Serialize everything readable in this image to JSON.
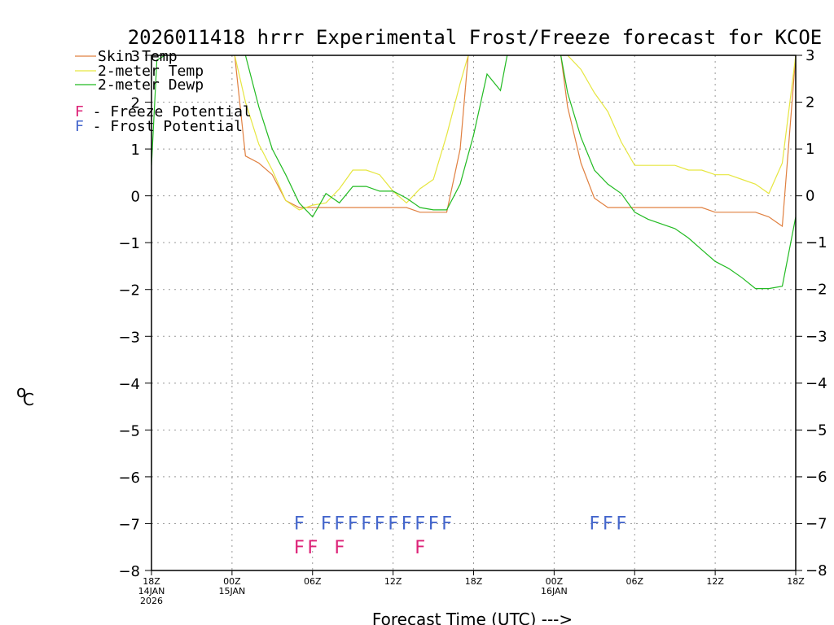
{
  "chart_data": {
    "type": "line",
    "title": "2026011418 hrrr Experimental Frost/Freeze forecast for KCOE",
    "xlabel": "Forecast Time (UTC) --->",
    "ylabel_sup": "o",
    "ylabel": "C",
    "ylim": [
      -8,
      3
    ],
    "xlim": [
      0,
      48
    ],
    "y_ticks": [
      "3",
      "2",
      "1",
      "0",
      "−1",
      "−2",
      "−3",
      "−4",
      "−5",
      "−6",
      "−7",
      "−8"
    ],
    "y_tick_values": [
      3,
      2,
      1,
      0,
      -1,
      -2,
      -3,
      -4,
      -5,
      -6,
      -7,
      -8
    ],
    "x_ticks": [
      {
        "hour": 0,
        "label": "18Z",
        "sub1": "14JAN",
        "sub2": "2026"
      },
      {
        "hour": 6,
        "label": "00Z",
        "sub1": "15JAN",
        "sub2": ""
      },
      {
        "hour": 12,
        "label": "06Z",
        "sub1": "",
        "sub2": ""
      },
      {
        "hour": 18,
        "label": "12Z",
        "sub1": "",
        "sub2": ""
      },
      {
        "hour": 24,
        "label": "18Z",
        "sub1": "",
        "sub2": ""
      },
      {
        "hour": 30,
        "label": "00Z",
        "sub1": "16JAN",
        "sub2": ""
      },
      {
        "hour": 36,
        "label": "06Z",
        "sub1": "",
        "sub2": ""
      },
      {
        "hour": 42,
        "label": "12Z",
        "sub1": "",
        "sub2": ""
      },
      {
        "hour": 48,
        "label": "18Z",
        "sub1": "",
        "sub2": ""
      }
    ],
    "series": [
      {
        "name": "Skin Temp",
        "color": "#e08040",
        "x": [
          6.2,
          7,
          8,
          9,
          10,
          11,
          12,
          13,
          14,
          15,
          16,
          17,
          18,
          19,
          20,
          21,
          22,
          23,
          23.6,
          30.5,
          31,
          32,
          33,
          34,
          35,
          36,
          37,
          38,
          39,
          40,
          41,
          42,
          43,
          44,
          45,
          46,
          47,
          48
        ],
        "values": [
          3,
          0.85,
          0.7,
          0.45,
          -0.1,
          -0.25,
          -0.25,
          -0.25,
          -0.25,
          -0.25,
          -0.25,
          -0.25,
          -0.25,
          -0.25,
          -0.35,
          -0.35,
          -0.35,
          1.0,
          3,
          3,
          1.9,
          0.7,
          -0.05,
          -0.25,
          -0.25,
          -0.25,
          -0.25,
          -0.25,
          -0.25,
          -0.25,
          -0.25,
          -0.35,
          -0.35,
          -0.35,
          -0.35,
          -0.45,
          -0.65,
          3
        ]
      },
      {
        "name": "2-meter Temp",
        "color": "#e6e640",
        "x": [
          6.2,
          7,
          8,
          9,
          10,
          11,
          12,
          13,
          14,
          15,
          16,
          17,
          18,
          19,
          20,
          21,
          22,
          23,
          23.6,
          30.5,
          31,
          32,
          33,
          34,
          35,
          36,
          37,
          38,
          39,
          40,
          41,
          42,
          43,
          44,
          45,
          46,
          47,
          48
        ],
        "values": [
          3,
          2.0,
          1.1,
          0.55,
          -0.1,
          -0.3,
          -0.2,
          -0.15,
          0.15,
          0.55,
          0.55,
          0.45,
          0.1,
          -0.15,
          0.15,
          0.35,
          1.3,
          2.4,
          3,
          3,
          3,
          2.7,
          2.2,
          1.8,
          1.15,
          0.65,
          0.65,
          0.65,
          0.65,
          0.55,
          0.55,
          0.45,
          0.45,
          0.35,
          0.25,
          0.05,
          0.7,
          3
        ]
      },
      {
        "name": "2-meter Dewp",
        "color": "#22bb22",
        "x": [
          0,
          0.4,
          1,
          7,
          8,
          9,
          10,
          11,
          12,
          13,
          14,
          15,
          16,
          17,
          18,
          19,
          20,
          21,
          22,
          23,
          24,
          25,
          26,
          26.5,
          30.5,
          31,
          32,
          33,
          34,
          35,
          36,
          37,
          38,
          39,
          40,
          41,
          42,
          43,
          44,
          45,
          46,
          47,
          48
        ],
        "values": [
          0.65,
          2.9,
          3,
          3,
          1.9,
          1.0,
          0.45,
          -0.15,
          -0.45,
          0.05,
          -0.15,
          0.2,
          0.2,
          0.1,
          0.1,
          -0.05,
          -0.25,
          -0.3,
          -0.3,
          0.25,
          1.3,
          2.6,
          2.25,
          3,
          3,
          2.2,
          1.25,
          0.55,
          0.25,
          0.05,
          -0.35,
          -0.5,
          -0.6,
          -0.7,
          -0.9,
          -1.15,
          -1.4,
          -1.55,
          -1.75,
          -1.98,
          -1.98,
          -1.93,
          -0.45
        ]
      }
    ],
    "frost_flags": {
      "label": "F - Frost Potential",
      "color": "#4466cc",
      "hours": [
        11,
        13,
        14,
        15,
        16,
        17,
        18,
        19,
        20,
        21,
        22,
        33,
        34,
        35
      ],
      "letter": "F"
    },
    "freeze_flags": {
      "label": "F - Freeze Potential",
      "color": "#dd2277",
      "hours": [
        11,
        12,
        14,
        20
      ],
      "letter": "F"
    },
    "legend_lines": [
      "Skin Temp",
      "2-meter Temp",
      "2-meter Dewp"
    ]
  }
}
